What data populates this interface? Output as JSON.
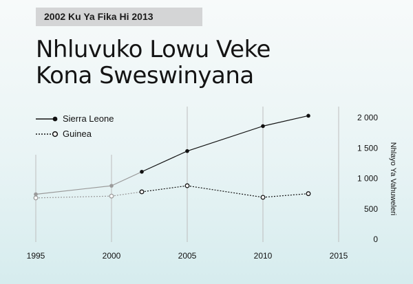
{
  "header": {
    "badge": "2002 Ku Ya Fika Hi 2013",
    "title_line1": "Nhluvuko Lowu Veke",
    "title_line2": "Kona Sweswinyana"
  },
  "chart_data": {
    "type": "line",
    "title": "Nhluvuko Lowu Veke Kona Sweswinyana",
    "subtitle": "2002 Ku Ya Fika Hi 2013",
    "xlabel": "",
    "ylabel": "Nhlayo Ya Vahuweleri",
    "x_ticks": [
      1995,
      2000,
      2005,
      2010,
      2015
    ],
    "y_ticks": [
      0,
      500,
      1000,
      1500,
      2000
    ],
    "y_tick_labels": [
      "0",
      "500",
      "1 000",
      "1 500",
      "2 000"
    ],
    "xlim": [
      1995,
      2015
    ],
    "ylim": [
      0,
      2000
    ],
    "grid": "vertical",
    "legend_position": "top-left",
    "highlight_range": [
      2002,
      2013
    ],
    "series": [
      {
        "name": "Sierra Leone",
        "style": "solid-filled",
        "color": "#111111",
        "x": [
          1995,
          2000,
          2002,
          2005,
          2010,
          2013
        ],
        "y": [
          740,
          880,
          1110,
          1450,
          1860,
          2030
        ]
      },
      {
        "name": "Guinea",
        "style": "dotted-hollow",
        "color": "#111111",
        "x": [
          1995,
          2000,
          2002,
          2005,
          2010,
          2013
        ],
        "y": [
          680,
          710,
          780,
          880,
          690,
          750
        ]
      }
    ]
  }
}
